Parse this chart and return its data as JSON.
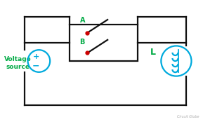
{
  "bg_color": "#ffffff",
  "wire_color": "#111111",
  "cyan_color": "#00aadd",
  "green_color": "#00aa44",
  "red_color": "#cc0000",
  "title_text": "Circuit Globe",
  "label_voltage": "Voltage\nsource",
  "label_A": "A",
  "label_B": "B",
  "label_L": "L",
  "figsize": [
    2.89,
    1.74
  ],
  "dpi": 100,
  "xlim": [
    0,
    10
  ],
  "ylim": [
    0,
    6
  ]
}
